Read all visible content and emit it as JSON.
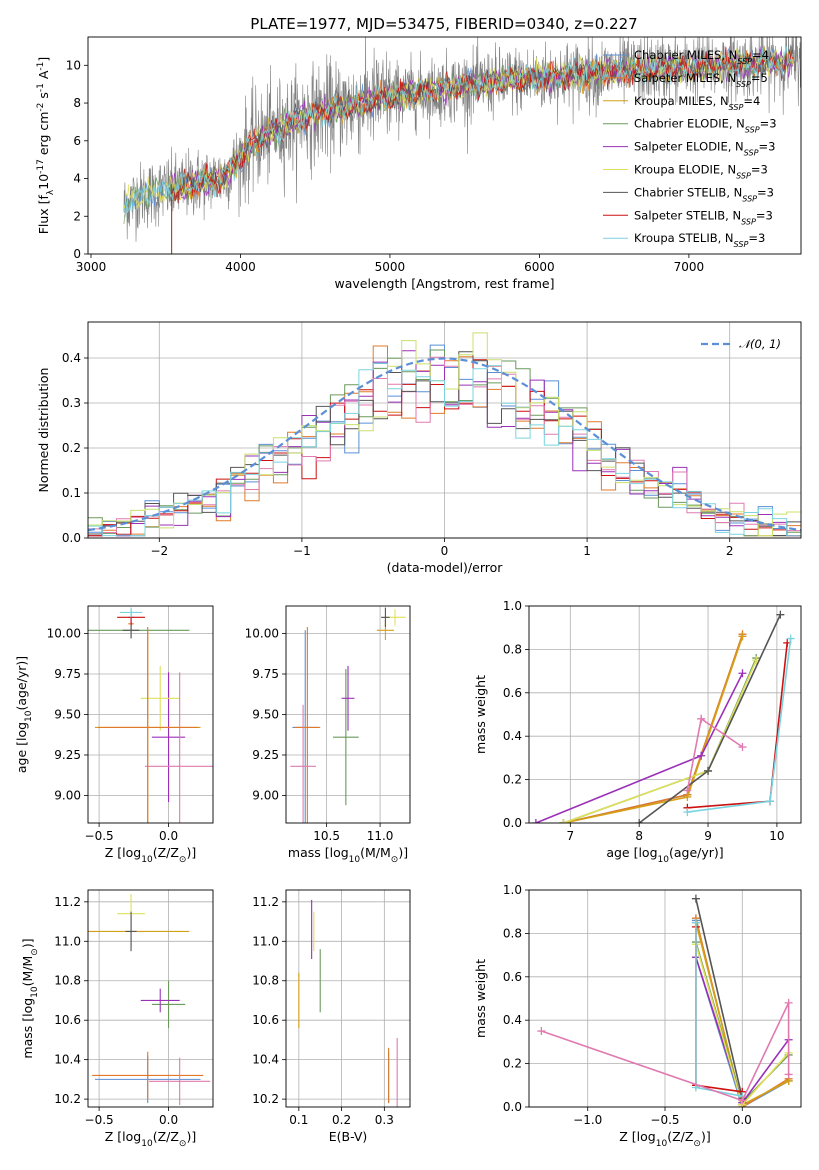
{
  "title": "PLATE=1977, MJD=53475, FIBERID=0340, z=0.227",
  "series_names": [
    "Chabrier MILES, N$_{SSP}$=4",
    "Salpeter MILES, N$_{SSP}$=5",
    "Kroupa MILES, N$_{SSP}$=4",
    "Chabrier ELODIE, N$_{SSP}$=3",
    "Salpeter ELODIE, N$_{SSP}$=3",
    "Kroupa ELODIE, N$_{SSP}$=3",
    "Chabrier STELIB, N$_{SSP}$=3",
    "Salpeter STELIB, N$_{SSP}$=3",
    "Kroupa STELIB, N$_{SSP}$=3"
  ],
  "legend_display": [
    {
      "prefix": "Chabrier MILES, N",
      "sub": "SSP",
      "suffix": "=4"
    },
    {
      "prefix": "Salpeter MILES, N",
      "sub": "SSP",
      "suffix": "=5"
    },
    {
      "prefix": "Kroupa MILES, N",
      "sub": "SSP",
      "suffix": "=4"
    },
    {
      "prefix": "Chabrier ELODIE, N",
      "sub": "SSP",
      "suffix": "=3"
    },
    {
      "prefix": "Salpeter ELODIE, N",
      "sub": "SSP",
      "suffix": "=3"
    },
    {
      "prefix": "Kroupa ELODIE, N",
      "sub": "SSP",
      "suffix": "=3"
    },
    {
      "prefix": "Chabrier STELIB, N",
      "sub": "SSP",
      "suffix": "=3"
    },
    {
      "prefix": "Salpeter STELIB, N",
      "sub": "SSP",
      "suffix": "=3"
    },
    {
      "prefix": "Kroupa STELIB, N",
      "sub": "SSP",
      "suffix": "=3"
    }
  ],
  "colors": [
    "#5b8fd6",
    "#e07a2a",
    "#d4a017",
    "#6a9a5c",
    "#9b30b8",
    "#e0e05a",
    "#555555",
    "#cc1111",
    "#7ad4e0"
  ],
  "data_color": "#808080",
  "model_color": "#5b8fd6",
  "hist_colors": [
    "#5b8fd6",
    "#e07a2a",
    "#6a9a5c",
    "#9b30b8",
    "#cc1111",
    "#e07ab0",
    "#555555",
    "#c8e06a",
    "#7ad4e0"
  ],
  "chart_data": [
    {
      "type": "line",
      "name": "spectrum",
      "xlabel": "wavelength [Angstrom, rest frame]",
      "ylabel": "Flux [f$_\\lambda$10$^{-17}$ erg cm$^{-2}$ s$^{-1}$ A$^{-1}$]",
      "xlim": [
        2980,
        7750
      ],
      "ylim": [
        0,
        11.5
      ],
      "xticks": [
        3000,
        4000,
        5000,
        6000,
        7000
      ],
      "yticks": [
        0,
        2,
        4,
        6,
        8,
        10
      ],
      "wavelength_start": 3220,
      "model_continuum": {
        "x": [
          3220,
          3300,
          3400,
          3500,
          3600,
          3700,
          3800,
          3900,
          4000,
          4100,
          4200,
          4300,
          4400,
          4500,
          4600,
          4700,
          4800,
          4900,
          5000,
          5200,
          5400,
          5600,
          5800,
          6000,
          6200,
          6400,
          6600,
          6800,
          7000,
          7200,
          7400,
          7600
        ],
        "y": [
          2.5,
          3.0,
          3.2,
          3.4,
          3.5,
          3.8,
          3.9,
          4.1,
          5.2,
          6.0,
          6.4,
          6.8,
          7.2,
          7.4,
          7.6,
          7.8,
          8.0,
          8.2,
          8.3,
          8.6,
          8.8,
          9.0,
          9.2,
          9.3,
          9.5,
          9.6,
          9.7,
          9.8,
          9.9,
          10.0,
          10.1,
          10.2
        ]
      }
    },
    {
      "type": "bar",
      "name": "residual-histogram",
      "xlabel": "(data-model)/error",
      "ylabel": "Normed distribution",
      "xlim": [
        -2.5,
        2.5
      ],
      "ylim": [
        0,
        0.48
      ],
      "xticks": [
        -2,
        -1,
        0,
        1,
        2
      ],
      "yticks": [
        0,
        0.1,
        0.2,
        0.3,
        0.4
      ],
      "bin_edges_start": -2.5,
      "bin_width": 0.1,
      "normal_label": "𝒩(0, 1)"
    },
    {
      "type": "scatter",
      "name": "age-vs-Z",
      "xlabel": "Z [log$_{10}$($Z/Z_\\odot$)]",
      "ylabel": "age  [log$_{10}$($age/yr$)]",
      "xlim": [
        -0.58,
        0.32
      ],
      "ylim": [
        8.83,
        10.17
      ],
      "xticks": [
        -0.5,
        0.0
      ],
      "yticks": [
        9.0,
        9.25,
        9.5,
        9.75,
        10.0
      ],
      "points": [
        {
          "x": -0.27,
          "y": 10.1,
          "xerr": 0.02,
          "yerr": 0.05
        },
        {
          "x": -0.27,
          "y": 10.06,
          "xerr": 0.02,
          "yerr": 0.05
        },
        {
          "x": -0.15,
          "y": 9.42,
          "xerr": 0.38,
          "yerr": 0.6
        },
        {
          "x": -0.27,
          "y": 10.02,
          "xerr": 0.42,
          "yerr": 0.05
        },
        {
          "x": 0.0,
          "y": 9.36,
          "xerr": 0.12,
          "yerr": 0.4
        },
        {
          "x": -0.06,
          "y": 9.6,
          "xerr": 0.14,
          "yerr": 0.2
        },
        {
          "x": -0.27,
          "y": 10.02,
          "xerr": 0.06,
          "yerr": 0.05
        },
        {
          "x": -0.27,
          "y": 10.1,
          "xerr": 0.1,
          "yerr": 0.05
        },
        {
          "x": -0.27,
          "y": 10.13,
          "xerr": 0.08,
          "yerr": 0.03
        },
        {
          "x": 0.08,
          "y": 9.18,
          "xerr": 0.25,
          "yerr": 0.58
        },
        {
          "x": -0.15,
          "y": 9.42,
          "xerr": 0.36,
          "yerr": 0.62
        }
      ]
    },
    {
      "type": "scatter",
      "name": "age-vs-mass",
      "xlabel": "mass [log$_{10}$($M/M_\\odot$)]",
      "ylabel": "",
      "xlim": [
        10.12,
        11.28
      ],
      "ylim": [
        8.83,
        10.17
      ],
      "xticks": [
        10.5,
        11.0
      ],
      "yticks": [
        9.0,
        9.25,
        9.5,
        9.75,
        10.0
      ],
      "points": [
        {
          "x": 10.3,
          "y": 9.42,
          "xerr": 0.12,
          "yerr": 0.6
        },
        {
          "x": 10.32,
          "y": 9.42,
          "xerr": 0.12,
          "yerr": 0.62
        },
        {
          "x": 11.05,
          "y": 10.02,
          "xerr": 0.08,
          "yerr": 0.06
        },
        {
          "x": 10.68,
          "y": 9.36,
          "xerr": 0.12,
          "yerr": 0.42
        },
        {
          "x": 10.7,
          "y": 9.6,
          "xerr": 0.06,
          "yerr": 0.2
        },
        {
          "x": 11.14,
          "y": 10.1,
          "xerr": 0.1,
          "yerr": 0.05
        },
        {
          "x": 11.05,
          "y": 10.1,
          "xerr": 0.04,
          "yerr": 0.06
        },
        {
          "x": 10.28,
          "y": 9.18,
          "xerr": 0.12,
          "yerr": 0.38
        }
      ]
    },
    {
      "type": "line",
      "name": "mass-weight-vs-age",
      "xlabel": "age  [log$_{10}$($age/yr$)]",
      "ylabel": "mass weight",
      "xlim": [
        6.4,
        10.35
      ],
      "ylim": [
        0,
        1
      ],
      "xticks": [
        7,
        8,
        9,
        10
      ],
      "yticks": [
        0.0,
        0.2,
        0.4,
        0.6,
        0.8,
        1.0
      ],
      "lines": [
        {
          "x": [
            6.9,
            8.7,
            9.5
          ],
          "y": [
            0.0,
            0.13,
            0.86
          ]
        },
        {
          "x": [
            6.9,
            8.7,
            9.5
          ],
          "y": [
            0.0,
            0.13,
            0.87
          ]
        },
        {
          "x": [
            6.9,
            8.7,
            9.5
          ],
          "y": [
            0.0,
            0.12,
            0.86
          ]
        },
        {
          "x": [
            6.9,
            9.0,
            9.7
          ],
          "y": [
            0.0,
            0.24,
            0.76
          ]
        },
        {
          "x": [
            6.5,
            8.9,
            9.5
          ],
          "y": [
            0.0,
            0.31,
            0.69
          ]
        },
        {
          "x": [
            6.9,
            9.0,
            9.7
          ],
          "y": [
            0.0,
            0.24,
            0.75
          ]
        },
        {
          "x": [
            8.0,
            9.0,
            10.05
          ],
          "y": [
            0.0,
            0.24,
            0.96
          ]
        },
        {
          "x": [
            8.7,
            9.9,
            10.15
          ],
          "y": [
            0.07,
            0.1,
            0.83
          ]
        },
        {
          "x": [
            8.7,
            9.9,
            10.2
          ],
          "y": [
            0.05,
            0.1,
            0.85
          ]
        },
        {
          "x": [
            8.9,
            9.5
          ],
          "y": [
            0.48,
            0.35
          ]
        },
        {
          "x": [
            8.7,
            8.9
          ],
          "y": [
            0.15,
            0.48
          ]
        }
      ]
    },
    {
      "type": "scatter",
      "name": "mass-vs-Z",
      "xlabel": "Z [log$_{10}$($Z/Z_\\odot$)]",
      "ylabel": "mass [log$_{10}$($M/M_\\odot$)]",
      "xlim": [
        -0.58,
        0.32
      ],
      "ylim": [
        10.16,
        11.26
      ],
      "xticks": [
        -0.5,
        0.0
      ],
      "yticks": [
        10.2,
        10.4,
        10.6,
        10.8,
        11.0,
        11.2
      ],
      "points": [
        {
          "x": -0.15,
          "y": 10.3,
          "xerr": 0.38,
          "yerr": 0.12
        },
        {
          "x": -0.15,
          "y": 10.32,
          "xerr": 0.4,
          "yerr": 0.12
        },
        {
          "x": -0.27,
          "y": 11.05,
          "xerr": 0.42,
          "yerr": 0.08
        },
        {
          "x": 0.0,
          "y": 10.68,
          "xerr": 0.12,
          "yerr": 0.12
        },
        {
          "x": -0.06,
          "y": 10.7,
          "xerr": 0.14,
          "yerr": 0.06
        },
        {
          "x": -0.27,
          "y": 11.14,
          "xerr": 0.1,
          "yerr": 0.1
        },
        {
          "x": -0.27,
          "y": 11.05,
          "xerr": 0.04,
          "yerr": 0.1
        },
        {
          "x": 0.08,
          "y": 10.29,
          "xerr": 0.22,
          "yerr": 0.12
        }
      ]
    },
    {
      "type": "scatter",
      "name": "mass-vs-EBV",
      "xlabel": "E(B-V)",
      "ylabel": "",
      "xlim": [
        0.07,
        0.36
      ],
      "ylim": [
        10.16,
        11.26
      ],
      "xticks": [
        0.1,
        0.2,
        0.3
      ],
      "yticks": [
        10.2,
        10.4,
        10.6,
        10.8,
        11.0,
        11.2
      ],
      "points": [
        {
          "x": 0.31,
          "y": 10.31,
          "xerr": 0.0,
          "yerr": 0.13
        },
        {
          "x": 0.31,
          "y": 10.32,
          "xerr": 0.0,
          "yerr": 0.14
        },
        {
          "x": 0.1,
          "y": 10.7,
          "xerr": 0.0,
          "yerr": 0.14
        },
        {
          "x": 0.15,
          "y": 10.8,
          "xerr": 0.0,
          "yerr": 0.16
        },
        {
          "x": 0.13,
          "y": 11.06,
          "xerr": 0.0,
          "yerr": 0.15
        },
        {
          "x": 0.135,
          "y": 11.05,
          "xerr": 0.0,
          "yerr": 0.1
        },
        {
          "x": 0.33,
          "y": 10.29,
          "xerr": 0.0,
          "yerr": 0.22
        }
      ]
    },
    {
      "type": "line",
      "name": "mass-weight-vs-Z",
      "xlabel": "Z [log$_{10}$($Z/Z_\\odot$)]",
      "ylabel": "mass weight",
      "xlim": [
        -1.38,
        0.38
      ],
      "ylim": [
        0,
        1
      ],
      "xticks": [
        -1.0,
        -0.5,
        0.0
      ],
      "yticks": [
        0.0,
        0.2,
        0.4,
        0.6,
        0.8,
        1.0
      ],
      "lines": [
        {
          "x": [
            -0.3,
            -0.3,
            0.0,
            0.3
          ],
          "y": [
            0.86,
            0.69,
            0.0,
            0.12
          ]
        },
        {
          "x": [
            -0.3,
            0.0,
            0.3
          ],
          "y": [
            0.87,
            0.0,
            0.13
          ]
        },
        {
          "x": [
            -0.3,
            0.0,
            0.3
          ],
          "y": [
            0.85,
            0.01,
            0.12
          ]
        },
        {
          "x": [
            -0.3,
            0.0,
            0.3
          ],
          "y": [
            0.76,
            0.02,
            0.24
          ]
        },
        {
          "x": [
            -0.3,
            0.0,
            0.3
          ],
          "y": [
            0.69,
            0.02,
            0.31
          ]
        },
        {
          "x": [
            -0.3,
            0.0,
            0.3
          ],
          "y": [
            0.75,
            0.01,
            0.25
          ]
        },
        {
          "x": [
            -0.3,
            0.0
          ],
          "y": [
            0.96,
            0.04
          ]
        },
        {
          "x": [
            -0.3,
            -0.3,
            0.0
          ],
          "y": [
            0.83,
            0.1,
            0.07
          ]
        },
        {
          "x": [
            -0.3,
            -0.3,
            0.0
          ],
          "y": [
            0.85,
            0.09,
            0.05
          ]
        },
        {
          "x": [
            -1.3,
            0.0,
            0.3,
            0.3
          ],
          "y": [
            0.35,
            0.03,
            0.48,
            0.15
          ]
        }
      ]
    }
  ]
}
